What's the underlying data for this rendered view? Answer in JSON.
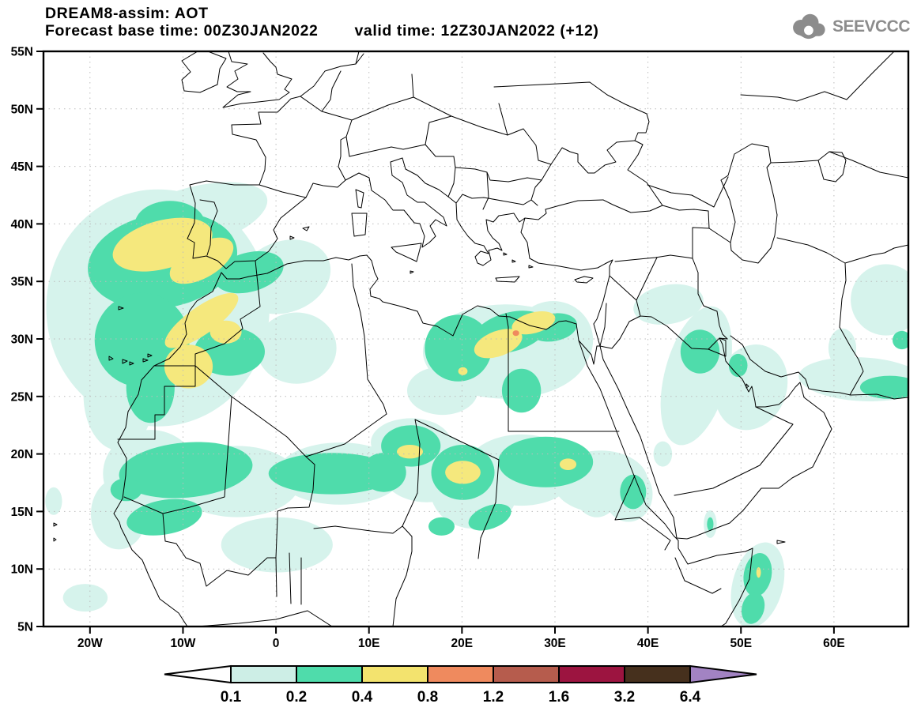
{
  "header": {
    "title": "DREAM8-assim: AOT",
    "base_time_label": "Forecast base time: 00Z30JAN2022",
    "valid_time_label": "valid time: 12Z30JAN2022 (+12)"
  },
  "logo": {
    "text": "SEEVCCC",
    "color": "#8c8c8c"
  },
  "chart_data": {
    "type": "heatmap",
    "subtype": "filled-contour-geographic-map",
    "title": "DREAM8-assim: AOT",
    "variable": "AOT (aerosol optical thickness)",
    "forecast_base_time": "00Z30JAN2022",
    "valid_time": "12Z30JAN2022 (+12)",
    "lon_range": [
      -25,
      68
    ],
    "lat_range": [
      5,
      55
    ],
    "grid": "dotted",
    "grid_color": "#bcbcbc",
    "lat_ticks": [
      {
        "label": "55N",
        "lat": 55
      },
      {
        "label": "50N",
        "lat": 50
      },
      {
        "label": "45N",
        "lat": 45
      },
      {
        "label": "40N",
        "lat": 40
      },
      {
        "label": "35N",
        "lat": 35
      },
      {
        "label": "30N",
        "lat": 30
      },
      {
        "label": "25N",
        "lat": 25
      },
      {
        "label": "20N",
        "lat": 20
      },
      {
        "label": "15N",
        "lat": 15
      },
      {
        "label": "10N",
        "lat": 10
      },
      {
        "label": "5N",
        "lat": 5
      }
    ],
    "lon_ticks": [
      {
        "label": "20W",
        "lon": -20
      },
      {
        "label": "10W",
        "lon": -10
      },
      {
        "label": "0",
        "lon": 0
      },
      {
        "label": "10E",
        "lon": 10
      },
      {
        "label": "20E",
        "lon": 20
      },
      {
        "label": "30E",
        "lon": 30
      },
      {
        "label": "40E",
        "lon": 40
      },
      {
        "label": "50E",
        "lon": 50
      },
      {
        "label": "60E",
        "lon": 60
      }
    ],
    "legend": {
      "labels": [
        "0.1",
        "0.2",
        "0.4",
        "0.8",
        "1.2",
        "1.6",
        "3.2",
        "6.4"
      ],
      "segment_colors": [
        "#cdeee6",
        "#4fdcab",
        "#f3e36e",
        "#ef8a5e",
        "#b65c4d",
        "#9c1440",
        "#46301d"
      ],
      "below_min_color": "#ffffff",
      "above_max_color": "#a283c3",
      "position": "bottom"
    },
    "fill_colors": {
      "0.1": "#d6f3ec",
      "0.2": "#4fdcab",
      "0.4": "#f5e87d",
      "0.8": "#ef8a5e"
    },
    "plumes": [
      {
        "level": "0.1",
        "ellipses": [
          [
            -12.7,
            32.7,
            12,
            10.3,
            0
          ],
          [
            -8.8,
            40.6,
            8.1,
            2.6,
            -15
          ],
          [
            0.9,
            35.4,
            5.1,
            3.1,
            -20
          ],
          [
            2.2,
            29.2,
            4.3,
            3.1,
            0
          ],
          [
            -16.9,
            25.1,
            3.8,
            4.8,
            0
          ],
          [
            -13.5,
            18.3,
            5.1,
            3.8,
            0
          ],
          [
            -4.2,
            17.6,
            6.8,
            3.1,
            0
          ],
          [
            6.9,
            18.3,
            6.8,
            2.7,
            0
          ],
          [
            16.2,
            18.9,
            5.1,
            3.1,
            0
          ],
          [
            26.4,
            18.6,
            6,
            3.1,
            0
          ],
          [
            34.9,
            17.6,
            5.1,
            2.7,
            0
          ],
          [
            0.1,
            12.1,
            6,
            2.4,
            0
          ],
          [
            -16.9,
            14.8,
            3,
            3.1,
            0
          ],
          [
            14.5,
            21,
            4.3,
            2.1,
            0
          ],
          [
            21.3,
            16.9,
            4.7,
            3.4,
            0
          ],
          [
            -20.5,
            7.5,
            2.4,
            1.2,
            0
          ],
          [
            -23.9,
            15.9,
            0.9,
            1.2,
            0
          ],
          [
            24.7,
            28.9,
            8.9,
            4.1,
            0
          ],
          [
            29.8,
            29.9,
            4.3,
            3.4,
            0
          ],
          [
            17.9,
            25.5,
            3.8,
            2.1,
            0
          ],
          [
            34.5,
            17.2,
            2.6,
            2.7,
            0
          ],
          [
            37.9,
            16.5,
            2.6,
            2.4,
            0
          ],
          [
            41.6,
            20,
            1,
            1.1,
            0
          ],
          [
            46.7,
            13.9,
            0.7,
            1.2,
            0
          ],
          [
            42.2,
            33,
            3.8,
            1.7,
            -10
          ],
          [
            45.2,
            26.8,
            3.4,
            6.2,
            15
          ],
          [
            51.1,
            25.8,
            3.8,
            3.8,
            20
          ],
          [
            63,
            26.5,
            6.8,
            1.9,
            3
          ],
          [
            65.6,
            33.4,
            3.8,
            3.1,
            0
          ],
          [
            60.9,
            29.2,
            1.5,
            1.7,
            0
          ],
          [
            51.8,
            8.6,
            2.7,
            3.8,
            15
          ]
        ]
      },
      {
        "level": "0.2",
        "ellipses": [
          [
            -12.2,
            36.8,
            8.1,
            4.1,
            -10
          ],
          [
            -14.4,
            29.9,
            5.1,
            4.1,
            0
          ],
          [
            -2.9,
            35.8,
            3.8,
            1.7,
            -15
          ],
          [
            -11.4,
            39.9,
            3.8,
            2.1,
            0
          ],
          [
            -13.5,
            25.8,
            2.6,
            3.1,
            0
          ],
          [
            -5,
            28.9,
            3.8,
            2.1,
            0
          ],
          [
            -9.7,
            18.6,
            7.2,
            2.4,
            -5
          ],
          [
            6,
            18.3,
            6.8,
            1.8,
            0
          ],
          [
            11.6,
            18.4,
            2.4,
            1.7,
            0
          ],
          [
            29,
            19.3,
            5.1,
            2.2,
            0
          ],
          [
            14.5,
            20.7,
            3.2,
            1.8,
            0
          ],
          [
            20.1,
            18.4,
            3.4,
            2.4,
            0
          ],
          [
            23,
            14.5,
            2.4,
            1,
            -20
          ],
          [
            17.8,
            13.7,
            1.4,
            0.8,
            0
          ],
          [
            -12,
            14.5,
            4.1,
            1.5,
            -10
          ],
          [
            -16.1,
            16.9,
            1.7,
            1,
            0
          ],
          [
            19.6,
            29.2,
            3.6,
            2.9,
            0
          ],
          [
            25.2,
            30.6,
            4.1,
            1.7,
            -15
          ],
          [
            29.8,
            31,
            2.6,
            1.2,
            -10
          ],
          [
            26.4,
            25.5,
            2.1,
            1.9,
            0
          ],
          [
            38.4,
            16.7,
            1.4,
            1.5,
            0
          ],
          [
            46.7,
            13.9,
            0.35,
            0.6,
            0
          ],
          [
            45.6,
            28.9,
            2.1,
            1.9,
            0
          ],
          [
            49.7,
            27.7,
            1,
            1,
            0
          ],
          [
            66,
            25.8,
            3.2,
            1,
            0
          ],
          [
            67.3,
            29.9,
            1,
            0.8,
            0
          ],
          [
            51.8,
            9.5,
            1.5,
            1.9,
            10
          ],
          [
            51.3,
            6.6,
            1.2,
            1.4,
            15
          ]
        ]
      },
      {
        "level": "0.4",
        "ellipses": [
          [
            -12.2,
            38.2,
            5.5,
            2.1,
            -15
          ],
          [
            -8,
            36.8,
            3.8,
            1.5,
            -30
          ],
          [
            -8,
            31.6,
            4.7,
            1.2,
            -35
          ],
          [
            -5.4,
            30.6,
            1.7,
            1,
            0
          ],
          [
            -9.4,
            27.6,
            2.6,
            1.9,
            0
          ],
          [
            23.9,
            29.6,
            2.7,
            1.1,
            -20
          ],
          [
            27.7,
            31.4,
            2.4,
            0.9,
            -15
          ],
          [
            20.1,
            27.2,
            0.5,
            0.35,
            0
          ],
          [
            14.4,
            20.2,
            1.4,
            0.6,
            0
          ],
          [
            20.1,
            18.4,
            1.9,
            1,
            0
          ],
          [
            31.4,
            19.1,
            0.9,
            0.5,
            0
          ],
          [
            51.9,
            9.7,
            0.25,
            0.45,
            0
          ]
        ]
      },
      {
        "level": "0.8",
        "ellipses": [
          [
            25.8,
            30.5,
            0.35,
            0.25,
            0
          ]
        ]
      }
    ]
  }
}
